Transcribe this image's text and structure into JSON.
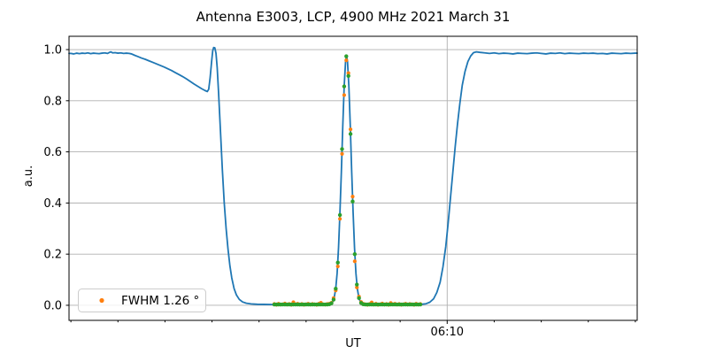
{
  "figure": {
    "background": "#ffffff",
    "grid_color": "#b0b0b0",
    "spine_color": "#000000"
  },
  "chart_data": {
    "type": "line",
    "title": "Antenna E3003, LCP, 4900 MHz 2021 March 31",
    "xlabel": "UT",
    "ylabel": "a.u.",
    "ylim": [
      -0.059,
      1.052
    ],
    "xlim": [
      -0.4,
      120.4
    ],
    "grid": {
      "horizontal": true,
      "vertical_on_major_x_only": true
    },
    "legend": {
      "label": "FWHM 1.26 °",
      "marker_color": "#ff7f0e",
      "position": "lower left"
    },
    "fwhm_deg": 1.26,
    "y_ticks": [
      {
        "value": 0.0,
        "label": "0.0"
      },
      {
        "value": 0.2,
        "label": "0.2"
      },
      {
        "value": 0.4,
        "label": "0.4"
      },
      {
        "value": 0.6,
        "label": "0.6"
      },
      {
        "value": 0.8,
        "label": "0.8"
      },
      {
        "value": 1.0,
        "label": "1.0"
      }
    ],
    "x_major_ticks": [
      {
        "minutes": 80,
        "label": "06:10"
      }
    ],
    "x_minor_ticks_minutes": [
      0,
      10,
      20,
      30,
      40,
      50,
      60,
      70,
      90,
      100,
      110,
      120
    ],
    "series": [
      {
        "name": "drift-scan-curve",
        "kind": "line",
        "color": "#1f77b4",
        "width": 1.8,
        "points": [
          [
            -0.4,
            0.985
          ],
          [
            0,
            0.985
          ],
          [
            0.6,
            0.983
          ],
          [
            1.2,
            0.986
          ],
          [
            1.8,
            0.984
          ],
          [
            2.4,
            0.986
          ],
          [
            3.0,
            0.985
          ],
          [
            3.6,
            0.987
          ],
          [
            4.2,
            0.984
          ],
          [
            4.8,
            0.986
          ],
          [
            5.4,
            0.985
          ],
          [
            6.0,
            0.984
          ],
          [
            6.6,
            0.986
          ],
          [
            7.2,
            0.987
          ],
          [
            7.8,
            0.985
          ],
          [
            8.2,
            0.989
          ],
          [
            8.5,
            0.991
          ],
          [
            8.9,
            0.987
          ],
          [
            9.4,
            0.988
          ],
          [
            10.0,
            0.986
          ],
          [
            10.6,
            0.987
          ],
          [
            11.2,
            0.985
          ],
          [
            11.8,
            0.986
          ],
          [
            12.4,
            0.985
          ],
          [
            12.9,
            0.983
          ],
          [
            13.5,
            0.978
          ],
          [
            14.2,
            0.973
          ],
          [
            15.0,
            0.967
          ],
          [
            15.8,
            0.962
          ],
          [
            16.6,
            0.956
          ],
          [
            17.4,
            0.95
          ],
          [
            18.2,
            0.944
          ],
          [
            19.0,
            0.938
          ],
          [
            19.8,
            0.932
          ],
          [
            20.6,
            0.925
          ],
          [
            21.4,
            0.918
          ],
          [
            22.2,
            0.91
          ],
          [
            23.0,
            0.902
          ],
          [
            23.8,
            0.894
          ],
          [
            24.6,
            0.885
          ],
          [
            25.4,
            0.875
          ],
          [
            26.2,
            0.865
          ],
          [
            27.0,
            0.856
          ],
          [
            27.8,
            0.847
          ],
          [
            28.5,
            0.84
          ],
          [
            29.0,
            0.836
          ],
          [
            29.3,
            0.845
          ],
          [
            29.6,
            0.89
          ],
          [
            29.9,
            0.95
          ],
          [
            30.15,
            0.995
          ],
          [
            30.35,
            1.008
          ],
          [
            30.6,
            1.007
          ],
          [
            30.85,
            0.985
          ],
          [
            31.1,
            0.93
          ],
          [
            31.4,
            0.83
          ],
          [
            31.8,
            0.68
          ],
          [
            32.2,
            0.53
          ],
          [
            32.6,
            0.4
          ],
          [
            33.0,
            0.3
          ],
          [
            33.4,
            0.22
          ],
          [
            33.8,
            0.155
          ],
          [
            34.2,
            0.107
          ],
          [
            34.7,
            0.065
          ],
          [
            35.2,
            0.04
          ],
          [
            35.8,
            0.023
          ],
          [
            36.5,
            0.013
          ],
          [
            37.3,
            0.008
          ],
          [
            38.3,
            0.0055
          ],
          [
            39.6,
            0.004
          ],
          [
            41.0,
            0.0035
          ],
          [
            43.0,
            0.003
          ],
          [
            46.0,
            0.003
          ],
          [
            50.0,
            0.003
          ],
          [
            54.0,
            0.003
          ],
          [
            55.4,
            0.005
          ],
          [
            55.7,
            0.015
          ],
          [
            56.0,
            0.032
          ],
          [
            56.3,
            0.065
          ],
          [
            56.6,
            0.125
          ],
          [
            56.9,
            0.225
          ],
          [
            57.2,
            0.363
          ],
          [
            57.5,
            0.521
          ],
          [
            57.8,
            0.7
          ],
          [
            58.1,
            0.856
          ],
          [
            58.4,
            0.955
          ],
          [
            58.6,
            0.975
          ],
          [
            58.8,
            0.955
          ],
          [
            59.1,
            0.856
          ],
          [
            59.4,
            0.7
          ],
          [
            59.7,
            0.521
          ],
          [
            60.0,
            0.363
          ],
          [
            60.3,
            0.225
          ],
          [
            60.6,
            0.125
          ],
          [
            60.9,
            0.065
          ],
          [
            61.2,
            0.032
          ],
          [
            61.5,
            0.015
          ],
          [
            61.9,
            0.006
          ],
          [
            62.4,
            0.004
          ],
          [
            63.0,
            0.003
          ],
          [
            66.0,
            0.003
          ],
          [
            70.0,
            0.003
          ],
          [
            73.0,
            0.003
          ],
          [
            74.5,
            0.004
          ],
          [
            75.5,
            0.006
          ],
          [
            76.3,
            0.012
          ],
          [
            77.1,
            0.025
          ],
          [
            77.8,
            0.05
          ],
          [
            78.5,
            0.09
          ],
          [
            79.1,
            0.15
          ],
          [
            79.7,
            0.23
          ],
          [
            80.2,
            0.32
          ],
          [
            80.7,
            0.42
          ],
          [
            81.2,
            0.52
          ],
          [
            81.7,
            0.62
          ],
          [
            82.2,
            0.71
          ],
          [
            82.7,
            0.79
          ],
          [
            83.2,
            0.86
          ],
          [
            83.8,
            0.915
          ],
          [
            84.4,
            0.953
          ],
          [
            85.0,
            0.975
          ],
          [
            85.6,
            0.988
          ],
          [
            86.2,
            0.991
          ],
          [
            87.0,
            0.989
          ],
          [
            88,
            0.987
          ],
          [
            89,
            0.985
          ],
          [
            90,
            0.987
          ],
          [
            91,
            0.984
          ],
          [
            92,
            0.986
          ],
          [
            93,
            0.985
          ],
          [
            94,
            0.983
          ],
          [
            95,
            0.986
          ],
          [
            96,
            0.985
          ],
          [
            97,
            0.984
          ],
          [
            98,
            0.986
          ],
          [
            99,
            0.987
          ],
          [
            100,
            0.985
          ],
          [
            101,
            0.983
          ],
          [
            102,
            0.986
          ],
          [
            103,
            0.985
          ],
          [
            104,
            0.987
          ],
          [
            105,
            0.984
          ],
          [
            106,
            0.986
          ],
          [
            107,
            0.985
          ],
          [
            108,
            0.984
          ],
          [
            109,
            0.986
          ],
          [
            110,
            0.985
          ],
          [
            111,
            0.986
          ],
          [
            112,
            0.984
          ],
          [
            113,
            0.985
          ],
          [
            114,
            0.983
          ],
          [
            115,
            0.986
          ],
          [
            116,
            0.985
          ],
          [
            117,
            0.984
          ],
          [
            118,
            0.986
          ],
          [
            119,
            0.985
          ],
          [
            120,
            0.986
          ],
          [
            120.4,
            0.986
          ]
        ]
      },
      {
        "name": "scan-samples",
        "kind": "scatter",
        "color": "#ff7f0e",
        "marker_radius": 2.1,
        "points": [
          [
            43.25,
            0.005
          ],
          [
            43.7,
            0.002
          ],
          [
            44.15,
            0.006
          ],
          [
            44.6,
            0.003
          ],
          [
            45.05,
            0.004
          ],
          [
            45.5,
            0.007
          ],
          [
            45.95,
            0.003
          ],
          [
            46.4,
            0.005
          ],
          [
            46.85,
            0.002
          ],
          [
            47.3,
            0.012
          ],
          [
            47.75,
            0.004
          ],
          [
            48.2,
            0.006
          ],
          [
            48.65,
            0.003
          ],
          [
            49.1,
            0.005
          ],
          [
            49.55,
            0.002
          ],
          [
            50.0,
            0.004
          ],
          [
            50.45,
            0.006
          ],
          [
            50.9,
            0.003
          ],
          [
            51.35,
            0.005
          ],
          [
            51.8,
            0.004
          ],
          [
            52.25,
            0.002
          ],
          [
            52.7,
            0.006
          ],
          [
            53.15,
            0.01
          ],
          [
            53.6,
            0.004
          ],
          [
            54.05,
            0.003
          ],
          [
            54.5,
            0.005
          ],
          [
            54.95,
            0.006
          ],
          [
            55.4,
            0.01
          ],
          [
            55.85,
            0.028
          ],
          [
            56.3,
            0.058
          ],
          [
            56.75,
            0.152
          ],
          [
            57.2,
            0.338
          ],
          [
            57.65,
            0.592
          ],
          [
            58.1,
            0.822
          ],
          [
            58.55,
            0.958
          ],
          [
            59.0,
            0.908
          ],
          [
            59.45,
            0.688
          ],
          [
            59.9,
            0.425
          ],
          [
            60.35,
            0.172
          ],
          [
            60.8,
            0.07
          ],
          [
            61.25,
            0.034
          ],
          [
            61.7,
            0.013
          ],
          [
            62.15,
            0.006
          ],
          [
            62.6,
            0.004
          ],
          [
            63.05,
            0.002
          ],
          [
            63.5,
            0.005
          ],
          [
            63.95,
            0.011
          ],
          [
            64.4,
            0.003
          ],
          [
            64.85,
            0.006
          ],
          [
            65.3,
            0.002
          ],
          [
            65.75,
            0.004
          ],
          [
            66.2,
            0.007
          ],
          [
            66.65,
            0.003
          ],
          [
            67.1,
            0.005
          ],
          [
            67.55,
            0.002
          ],
          [
            68.0,
            0.009
          ],
          [
            68.45,
            0.004
          ],
          [
            68.9,
            0.006
          ],
          [
            69.35,
            0.003
          ],
          [
            69.8,
            0.005
          ],
          [
            70.25,
            0.002
          ],
          [
            70.7,
            0.004
          ],
          [
            71.15,
            0.006
          ],
          [
            71.6,
            0.003
          ],
          [
            72.05,
            0.005
          ],
          [
            72.5,
            0.004
          ],
          [
            72.95,
            0.002
          ],
          [
            73.4,
            0.006
          ],
          [
            73.85,
            0.003
          ],
          [
            74.3,
            0.005
          ]
        ]
      },
      {
        "name": "gaussian-fit-samples",
        "kind": "scatter",
        "color": "#2ca02c",
        "marker_radius": 2.2,
        "points": [
          [
            43.25,
            0.003
          ],
          [
            43.7,
            0.003
          ],
          [
            44.15,
            0.003
          ],
          [
            44.6,
            0.003
          ],
          [
            45.05,
            0.003
          ],
          [
            45.5,
            0.003
          ],
          [
            45.95,
            0.003
          ],
          [
            46.4,
            0.003
          ],
          [
            46.85,
            0.003
          ],
          [
            47.3,
            0.003
          ],
          [
            47.75,
            0.003
          ],
          [
            48.2,
            0.003
          ],
          [
            48.65,
            0.003
          ],
          [
            49.1,
            0.003
          ],
          [
            49.55,
            0.003
          ],
          [
            50.0,
            0.003
          ],
          [
            50.45,
            0.003
          ],
          [
            50.9,
            0.003
          ],
          [
            51.35,
            0.003
          ],
          [
            51.8,
            0.003
          ],
          [
            52.25,
            0.003
          ],
          [
            52.7,
            0.003
          ],
          [
            53.15,
            0.003
          ],
          [
            53.6,
            0.003
          ],
          [
            54.05,
            0.003
          ],
          [
            54.5,
            0.003
          ],
          [
            54.95,
            0.004
          ],
          [
            55.4,
            0.008
          ],
          [
            55.85,
            0.022
          ],
          [
            56.3,
            0.065
          ],
          [
            56.75,
            0.167
          ],
          [
            57.2,
            0.353
          ],
          [
            57.65,
            0.611
          ],
          [
            58.1,
            0.856
          ],
          [
            58.55,
            0.974
          ],
          [
            59.0,
            0.897
          ],
          [
            59.45,
            0.67
          ],
          [
            59.9,
            0.406
          ],
          [
            60.35,
            0.2
          ],
          [
            60.8,
            0.081
          ],
          [
            61.25,
            0.028
          ],
          [
            61.7,
            0.009
          ],
          [
            62.15,
            0.004
          ],
          [
            62.6,
            0.003
          ],
          [
            63.05,
            0.003
          ],
          [
            63.5,
            0.003
          ],
          [
            63.95,
            0.003
          ],
          [
            64.4,
            0.003
          ],
          [
            64.85,
            0.003
          ],
          [
            65.3,
            0.003
          ],
          [
            65.75,
            0.003
          ],
          [
            66.2,
            0.003
          ],
          [
            66.65,
            0.003
          ],
          [
            67.1,
            0.003
          ],
          [
            67.55,
            0.003
          ],
          [
            68.0,
            0.003
          ],
          [
            68.45,
            0.003
          ],
          [
            68.9,
            0.003
          ],
          [
            69.35,
            0.003
          ],
          [
            69.8,
            0.003
          ],
          [
            70.25,
            0.003
          ],
          [
            70.7,
            0.003
          ],
          [
            71.15,
            0.003
          ],
          [
            71.6,
            0.003
          ],
          [
            72.05,
            0.003
          ],
          [
            72.5,
            0.003
          ],
          [
            72.95,
            0.003
          ],
          [
            73.4,
            0.003
          ],
          [
            73.85,
            0.003
          ],
          [
            74.3,
            0.003
          ]
        ]
      }
    ]
  }
}
